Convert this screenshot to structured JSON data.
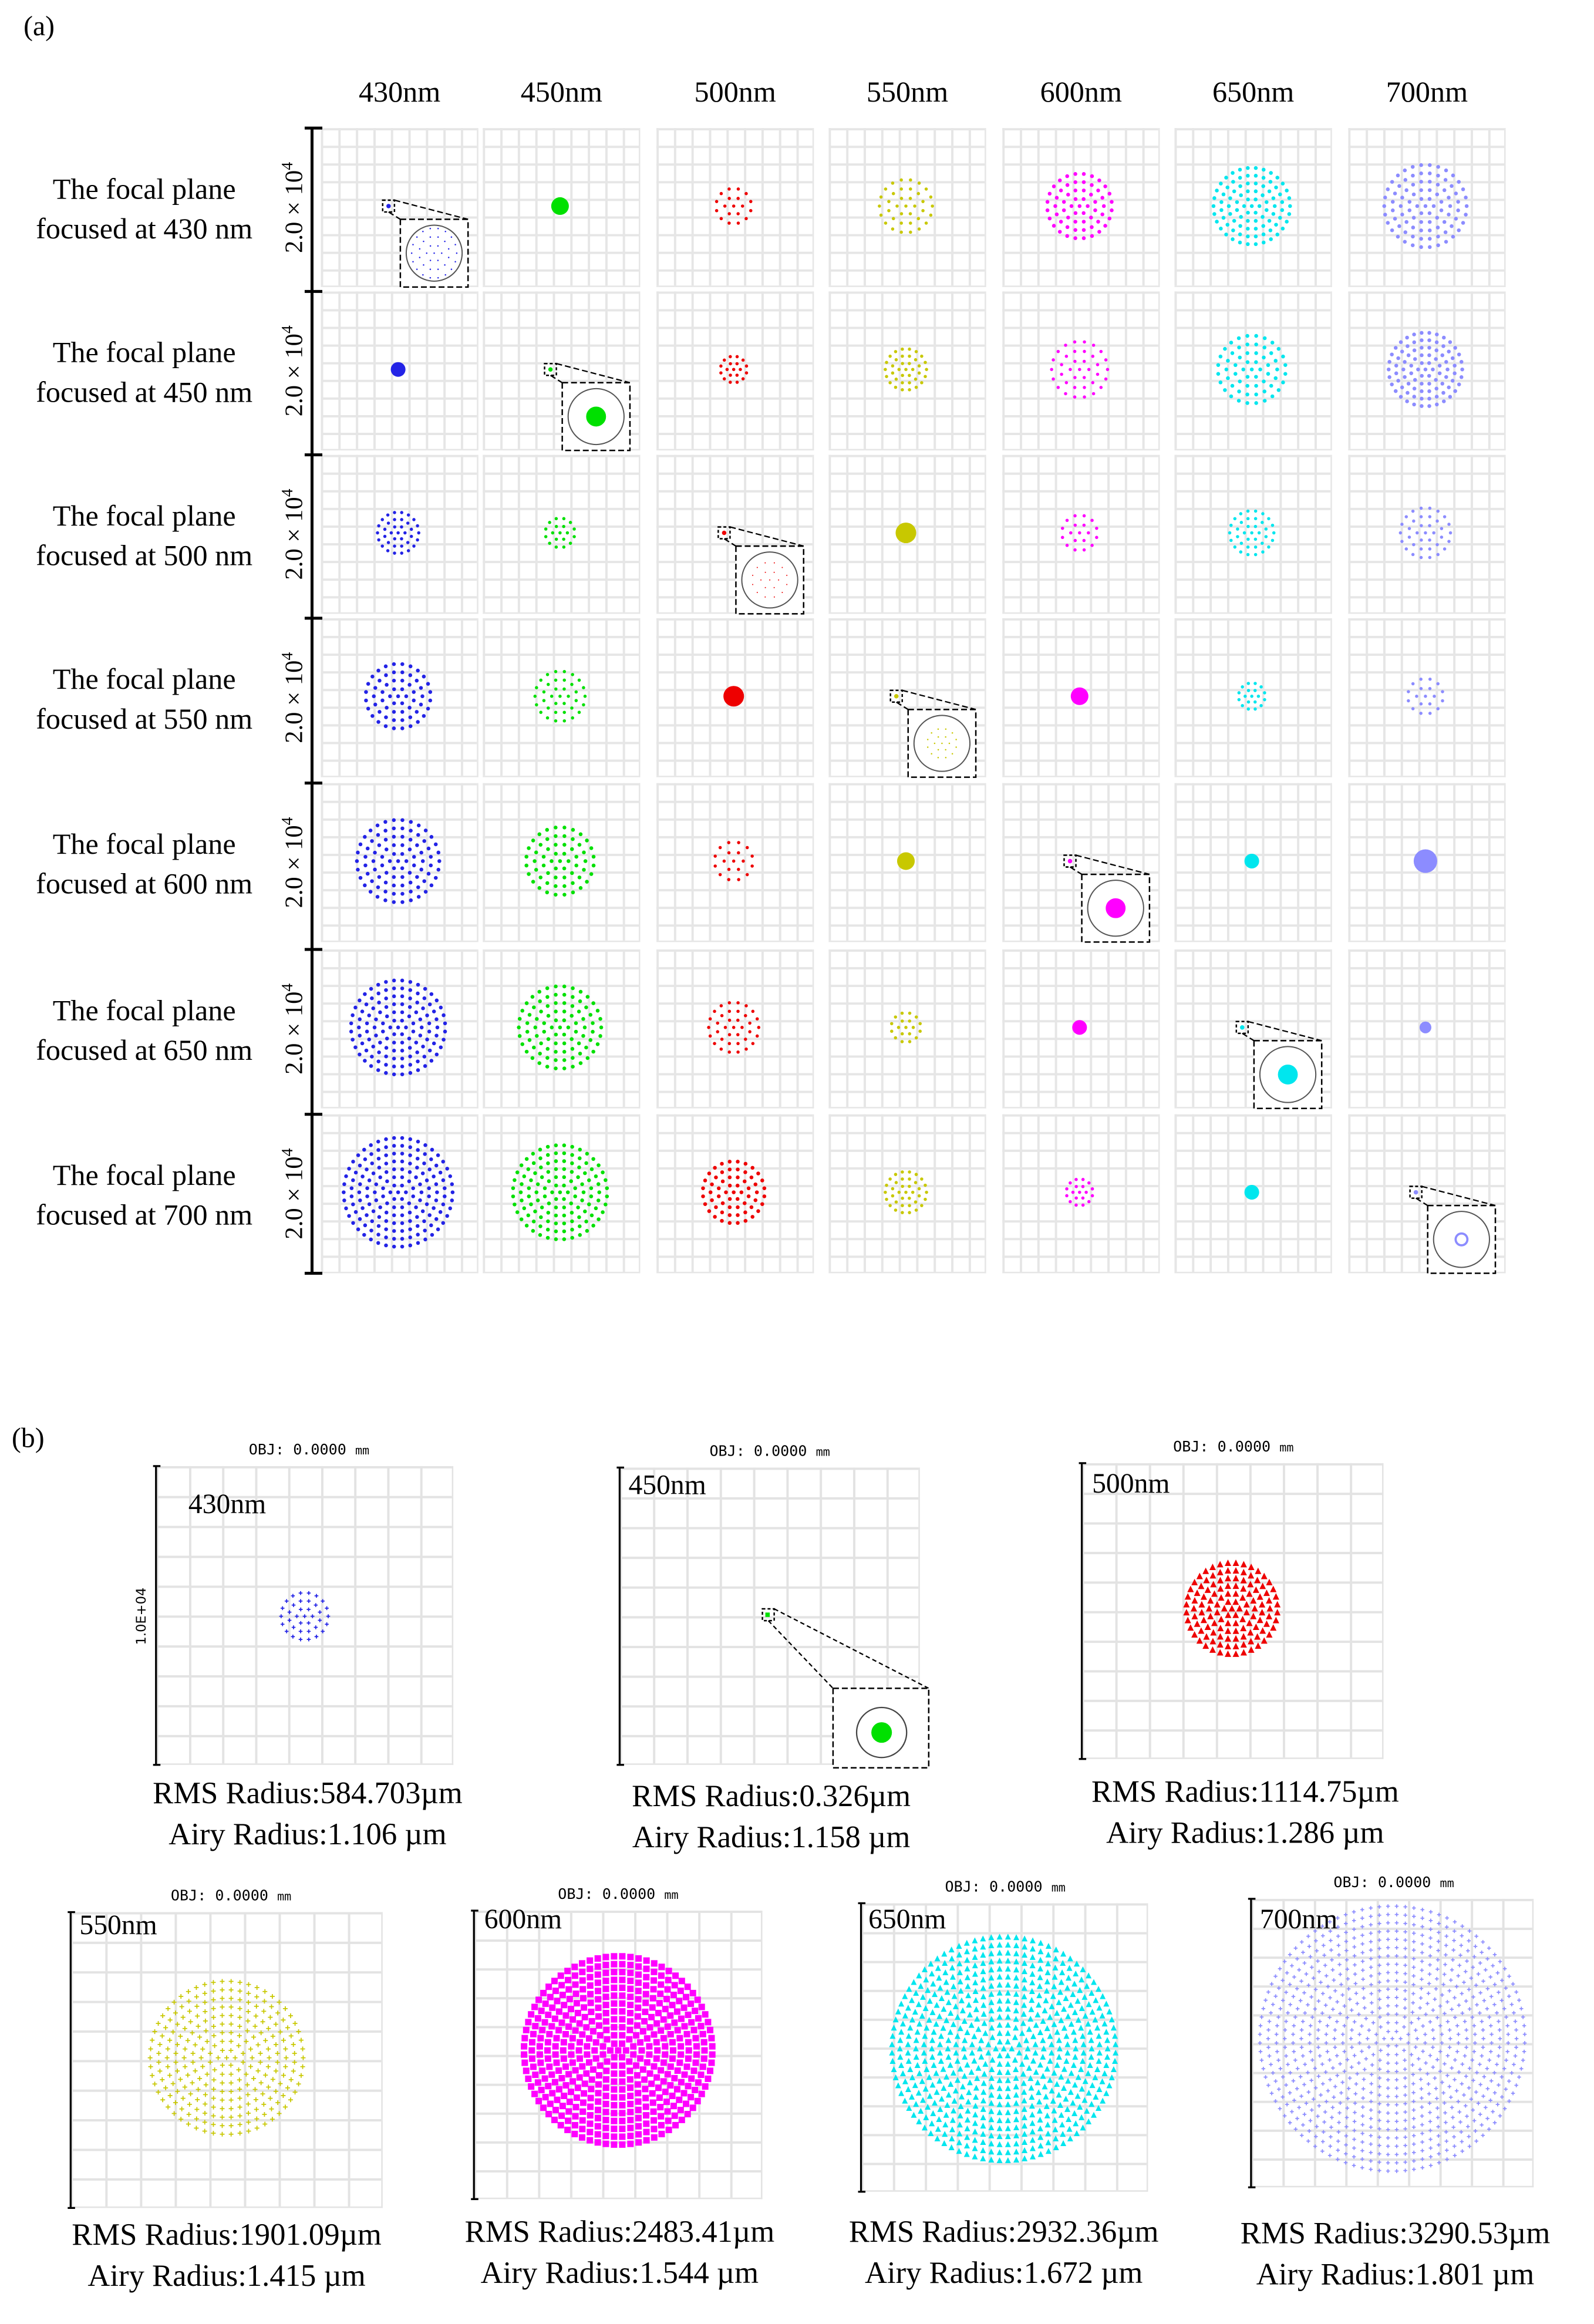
{
  "colors": {
    "430nm": "#2323e6",
    "450nm": "#00e000",
    "500nm": "#ee0000",
    "550nm": "#c8c800",
    "600nm": "#ff00ff",
    "650nm": "#00e6ee",
    "700nm": "#8c8cff"
  },
  "panel_a": {
    "label": "(a)",
    "column_headers": [
      "430nm",
      "450nm",
      "500nm",
      "550nm",
      "600nm",
      "650nm",
      "700nm"
    ],
    "scale_label": "2.0 × 10",
    "scale_exponent": "4",
    "rows": [
      {
        "line1": "The focal plane",
        "line2": "focused at 430 nm"
      },
      {
        "line1": "The focal plane",
        "line2": "focused at 450 nm"
      },
      {
        "line1": "The focal plane",
        "line2": "focused at 500 nm"
      },
      {
        "line1": "The focal plane",
        "line2": "focused at 550 nm"
      },
      {
        "line1": "The focal plane",
        "line2": "focused at 600 nm"
      },
      {
        "line1": "The focal plane",
        "line2": "focused at 650 nm"
      },
      {
        "line1": "The focal plane",
        "line2": "focused at 700 nm"
      }
    ]
  },
  "panel_b": {
    "label": "(b)",
    "y_scale_label": "1.0E+04",
    "plots": [
      {
        "obj": "OBJ: 0.0000",
        "unit": "mm",
        "wavelength": "430nm",
        "rms": "RMS Radius:584.703µm",
        "airy": "Airy  Radius:1.106 µm"
      },
      {
        "obj": "OBJ: 0.0000",
        "unit": "mm",
        "wavelength": "450nm",
        "rms": "RMS Radius:0.326µm",
        "airy": "Airy  Radius:1.158 µm"
      },
      {
        "obj": "OBJ: 0.0000",
        "unit": "mm",
        "wavelength": "500nm",
        "rms": "RMS Radius:1114.75µm",
        "airy": "Airy  Radius:1.286 µm"
      },
      {
        "obj": "OBJ: 0.0000",
        "unit": "mm",
        "wavelength": "550nm",
        "rms": "RMS Radius:1901.09µm",
        "airy": "Airy  Radius:1.415 µm"
      },
      {
        "obj": "OBJ: 0.0000",
        "unit": "mm",
        "wavelength": "600nm",
        "rms": "RMS Radius:2483.41µm",
        "airy": "Airy  Radius:1.544 µm"
      },
      {
        "obj": "OBJ: 0.0000",
        "unit": "mm",
        "wavelength": "650nm",
        "rms": "RMS Radius:2932.36µm",
        "airy": "Airy  Radius:1.672 µm"
      },
      {
        "obj": "OBJ: 0.0000",
        "unit": "mm",
        "wavelength": "700nm",
        "rms": "RMS Radius:3290.53µm",
        "airy": "Airy  Radius:1.801 µm"
      }
    ]
  }
}
